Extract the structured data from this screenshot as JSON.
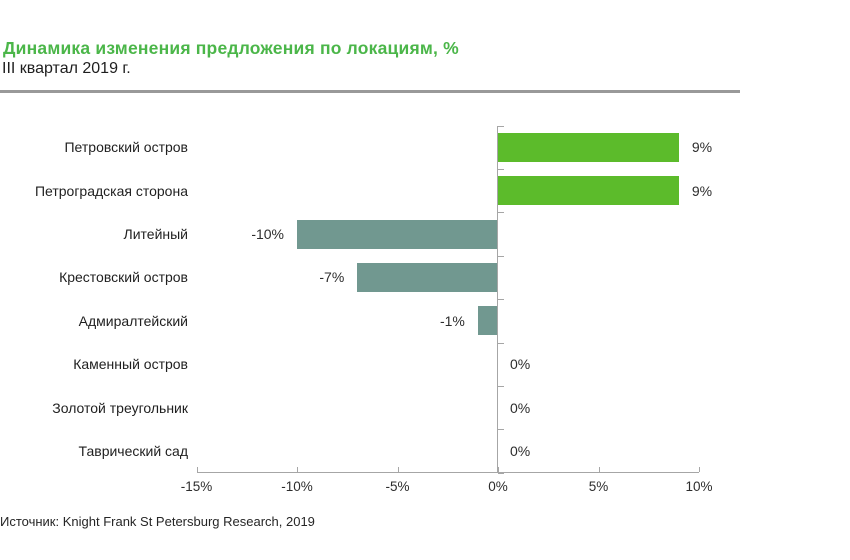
{
  "header": {
    "title": "Динамика изменения предложения по локациям, %",
    "subtitle": "III квартал 2019 г."
  },
  "source": "Источник: Knight Frank St Petersburg Research, 2019",
  "colors": {
    "title_green": "#4bb649",
    "bar_positive": "#5cbb2b",
    "bar_negative": "#719890",
    "axis": "#a6a6a6",
    "divider": "#999999"
  },
  "chart_data": {
    "type": "bar",
    "orientation": "horizontal",
    "title": "Динамика изменения предложения по локациям, %",
    "subtitle": "III квартал 2019 г.",
    "categories": [
      "Петровский остров",
      "Петроградская сторона",
      "Литейный",
      "Крестовский остров",
      "Адмиралтейский",
      "Каменный остров",
      "Золотой треугольник",
      "Таврический сад"
    ],
    "values": [
      9,
      9,
      -10,
      -7,
      -1,
      0,
      0,
      0
    ],
    "value_labels": [
      "9%",
      "9%",
      "-10%",
      "-7%",
      "-1%",
      "0%",
      "0%",
      "0%"
    ],
    "xlim": [
      -15,
      10
    ],
    "x_ticks": [
      -15,
      -10,
      -5,
      0,
      5,
      10
    ],
    "x_tick_labels": [
      "-15%",
      "-10%",
      "-5%",
      "0%",
      "5%",
      "10%"
    ],
    "grid": false,
    "legend": false
  }
}
